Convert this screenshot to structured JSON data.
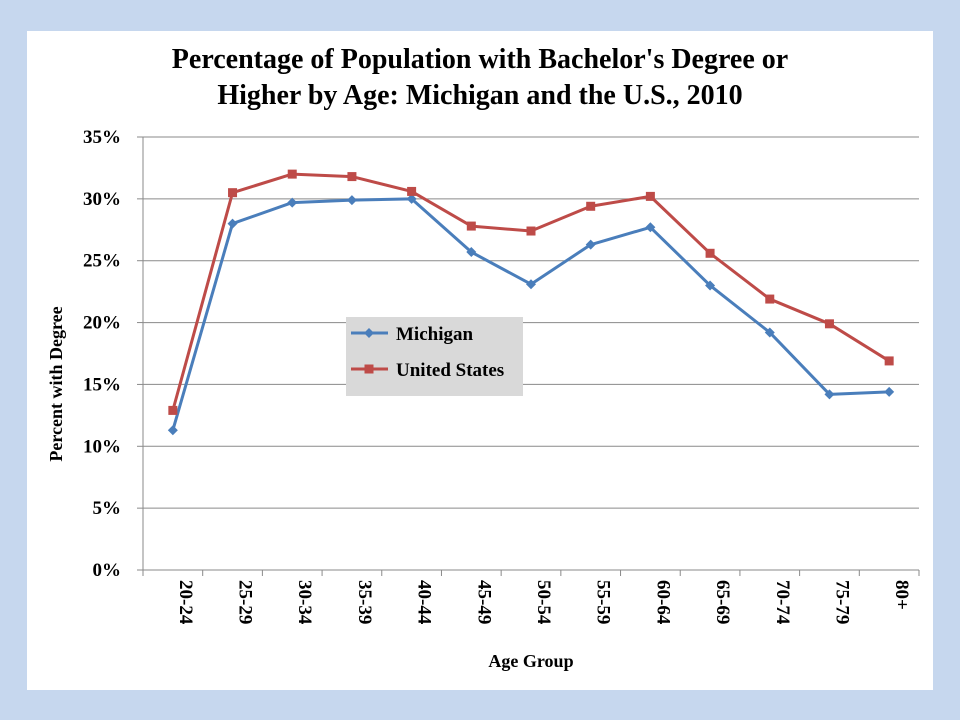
{
  "chart_data": {
    "type": "line",
    "title": [
      "Percentage of Population with Bachelor's Degree or",
      "Higher by Age: Michigan and the U.S.,  2010"
    ],
    "xlabel": "Age Group",
    "ylabel": "Percent with Degree",
    "categories": [
      "20-24",
      "25-29",
      "30-34",
      "35-39",
      "40-44",
      "45-49",
      "50-54",
      "55-59",
      "60-64",
      "65-69",
      "70-74",
      "75-79",
      "80+"
    ],
    "ylim": [
      0,
      35
    ],
    "yticks": [
      0,
      5,
      10,
      15,
      20,
      25,
      30,
      35
    ],
    "ytick_labels": [
      "0%",
      "5%",
      "10%",
      "15%",
      "20%",
      "25%",
      "30%",
      "35%"
    ],
    "grid": "horizontal",
    "legend_position": "center-left",
    "series": [
      {
        "name": "Michigan",
        "color": "#4a7ebb",
        "marker": "diamond",
        "values": [
          11.3,
          28.0,
          29.7,
          29.9,
          30.0,
          25.7,
          23.1,
          26.3,
          27.7,
          23.0,
          19.2,
          14.2,
          14.4
        ]
      },
      {
        "name": "United States",
        "color": "#be4b48",
        "marker": "square",
        "values": [
          12.9,
          30.5,
          32.0,
          31.8,
          30.6,
          27.8,
          27.4,
          29.4,
          30.2,
          25.6,
          21.9,
          19.9,
          16.9
        ]
      }
    ]
  }
}
